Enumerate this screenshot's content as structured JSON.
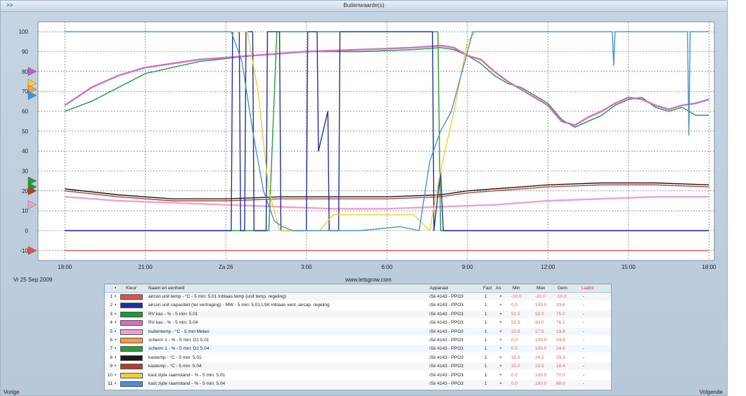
{
  "window": {
    "collapse_label": ">>",
    "title": "Buitenwaarde(s)"
  },
  "footer": {
    "date_label": "Vr 25 Sep 2009",
    "source_label": "www.letsgrow.com",
    "prev_label": "Vorige",
    "next_label": "Volgende"
  },
  "chart_data": {
    "type": "line",
    "x_tick_labels": [
      "18:00",
      "21:00",
      "Za 26",
      "3:00",
      "6:00",
      "9:00",
      "12:00",
      "15:00",
      "18:00"
    ],
    "x_range_hours": [
      -1,
      24.2
    ],
    "y_ticks": [
      -10,
      0,
      10,
      20,
      30,
      40,
      50,
      60,
      70,
      80,
      90,
      100
    ],
    "ylim": [
      -15,
      105
    ],
    "grid": true,
    "series": [
      {
        "name": "aircon unit temp - °C - 5 min: 5.01 Inblaas temp (unit temp. regeling)",
        "color": "#e05050",
        "x": [
          0,
          24
        ],
        "y": [
          -10,
          -10
        ]
      },
      {
        "name": "RV kas - % - 5 min: 5.01",
        "color": "#1a9a3a",
        "x": [
          0,
          1,
          2,
          3,
          5,
          7,
          9,
          11,
          13,
          14,
          14.5,
          15,
          15.5,
          16,
          16.5,
          17,
          17.5,
          18,
          18.5,
          19,
          19.5,
          20,
          20.5,
          21,
          21.5,
          22,
          22.5,
          23,
          23.5,
          24
        ],
        "y": [
          60,
          65,
          72,
          79,
          85,
          88,
          90,
          90,
          91,
          92,
          91,
          88,
          84,
          78,
          74,
          72,
          68,
          64,
          56,
          52,
          55,
          58,
          63,
          66,
          67,
          62,
          60,
          62,
          58,
          58
        ]
      },
      {
        "name": "RV kas - % - 5 min: 5.04",
        "color": "#d070c0",
        "x": [
          0,
          1,
          2,
          3,
          5,
          7,
          9,
          11,
          13,
          14,
          14.5,
          15,
          15.5,
          16,
          16.5,
          17,
          17.5,
          18,
          18.5,
          19,
          19.5,
          20,
          20.5,
          21,
          21.5,
          22,
          22.5,
          23,
          23.5,
          24
        ],
        "y": [
          63,
          72,
          78,
          82,
          86,
          88,
          90,
          91,
          92,
          93,
          92,
          88,
          86,
          80,
          75,
          71,
          67,
          63,
          55,
          53,
          57,
          60,
          64,
          67,
          66,
          63,
          61,
          63,
          64,
          66
        ]
      },
      {
        "name": "buitentemp - °C - 5 min Meteo",
        "color": "#f0a0d0",
        "x": [
          0,
          2,
          4,
          6,
          8,
          10,
          12,
          14,
          16,
          18,
          20,
          22,
          24
        ],
        "y": [
          17,
          15,
          14,
          13,
          12,
          11,
          11,
          12,
          13,
          15,
          16,
          17,
          17
        ]
      },
      {
        "name": "scherm 1 - % - 5 min: D1 5.01",
        "color": "#2a9a3a",
        "x": [
          0,
          7.6,
          7.9,
          8.0,
          13.5,
          13.9,
          14.0,
          24
        ],
        "y": [
          0,
          0,
          100,
          100,
          100,
          100,
          0,
          0
        ]
      },
      {
        "name": "kastemp - °C - 5 min: 5.01",
        "color": "#1a1a1a",
        "x": [
          0,
          2,
          4,
          6,
          8,
          10,
          12,
          14,
          15,
          16,
          18,
          20,
          22,
          24
        ],
        "y": [
          21,
          18,
          16,
          16,
          17,
          17,
          17,
          18,
          20,
          21,
          23,
          24,
          24,
          23
        ]
      },
      {
        "name": "kastemp - °C - 5 min: 5.04",
        "color": "#b04030",
        "x": [
          0,
          2,
          4,
          6,
          8,
          10,
          12,
          14,
          15,
          16,
          18,
          20,
          22,
          24
        ],
        "y": [
          20,
          17,
          15,
          15,
          16,
          16,
          16,
          17,
          19,
          20,
          22,
          23,
          23,
          22
        ]
      },
      {
        "name": "aircon unit capaciteit (ter vertraging) - MW - 5 min: 5.01 LSK inblaas vent. aircap. regeling",
        "color": "#2030a0",
        "x": [
          0,
          6.2,
          6.25,
          6.5,
          6.55,
          6.7,
          6.75,
          7.0,
          7.05,
          7.5,
          7.55,
          8.0,
          8.05,
          9.0,
          9.05,
          9.4,
          9.45,
          9.8,
          9.85,
          10.2,
          10.25,
          13.7,
          13.75,
          14.0,
          14.1,
          24
        ],
        "y": [
          0,
          0,
          100,
          100,
          0,
          0,
          100,
          100,
          0,
          0,
          100,
          100,
          0,
          0,
          100,
          100,
          40,
          60,
          0,
          0,
          100,
          100,
          0,
          30,
          0,
          0
        ]
      },
      {
        "name": "kast zijde raamstand - % - 5 min: 5.01",
        "color": "#f0d030",
        "x": [
          0,
          6.4,
          6.8,
          7.2,
          7.6,
          8.0,
          9.5,
          10.0,
          13.0,
          13.6,
          14.0,
          14.5,
          15.0,
          15.3,
          24
        ],
        "y": [
          100,
          100,
          100,
          70,
          20,
          0,
          0,
          8,
          8,
          0,
          30,
          60,
          95,
          100,
          100
        ]
      },
      {
        "name": "kast zijde raamstand - % - 5 min: 5.04",
        "color": "#4a90d0",
        "x": [
          0,
          6.2,
          6.6,
          7.0,
          7.4,
          7.8,
          8.1,
          8.5,
          9.0,
          11.0,
          12.5,
          13.2,
          13.6,
          14.0,
          14.4,
          14.8,
          15.2,
          20.4,
          20.45,
          20.5,
          23.2,
          23.25,
          23.3,
          24
        ],
        "y": [
          100,
          100,
          85,
          50,
          20,
          5,
          2,
          0,
          0,
          0,
          2,
          0,
          35,
          50,
          60,
          80,
          100,
          100,
          83,
          100,
          100,
          48,
          100,
          100
        ]
      }
    ],
    "axis_markers": [
      {
        "y": 80,
        "color": "#c060c0"
      },
      {
        "y": 74,
        "color": "#f0d030"
      },
      {
        "y": 71,
        "color": "#f0a040"
      },
      {
        "y": 68,
        "color": "#4a90d0"
      },
      {
        "y": 25,
        "color": "#2a9a3a"
      },
      {
        "y": 22,
        "color": "#1a9a3a"
      },
      {
        "y": 20,
        "color": "#b04030"
      },
      {
        "y": 13,
        "color": "#f0a0d0"
      },
      {
        "y": -10,
        "color": "#e05050"
      }
    ]
  },
  "legend": {
    "headers": {
      "dot": "•",
      "color": "Kleur",
      "name": "Naam en eenheid",
      "device": "Apparaat",
      "fact": "Fact",
      "ax": "As",
      "min": "Min",
      "max": "Max",
      "avg": "Gem",
      "last": "Laatst"
    },
    "rows": [
      {
        "idx": "1",
        "dot": "•",
        "color": "#e05050",
        "name": "aircon unit temp - °C - 5 min: 5.01 Inblaas temp (unit temp. regeling)",
        "device": "iSii 4143 - PPO3",
        "fact": "1",
        "ax": "+",
        "min": "-10.0",
        "max": "-10.0",
        "avg": "-10.0",
        "last": "-"
      },
      {
        "idx": "2",
        "dot": "•",
        "color": "#2030a0",
        "name": "aircon unit capaciteit (ter vertraging) - MW - 5 min: 5.01 LSK inblaas vent. aircap. regeling",
        "device": "iSii 4143 - PPO3",
        "fact": "1",
        "ax": "+",
        "min": "0.0",
        "max": "100.0",
        "avg": "33.6",
        "last": "-"
      },
      {
        "idx": "3",
        "dot": "•",
        "color": "#1a9a3a",
        "name": "RV kas - % - 5 min: 5.01",
        "device": "iSii 4143 - PPO3",
        "fact": "1",
        "ax": "+",
        "min": "51.5",
        "max": "92.0",
        "avg": "75.2",
        "last": "-"
      },
      {
        "idx": "4",
        "dot": "•",
        "color": "#d070c0",
        "name": "RV kas - % - 5 min: 5.04",
        "device": "iSii 4143 - PPO3",
        "fact": "1",
        "ax": "+",
        "min": "52.5",
        "max": "93.0",
        "avg": "76.1",
        "last": "-"
      },
      {
        "idx": "5",
        "dot": "•",
        "color": "#f0a0d0",
        "name": "buitentemp - °C - 5 min Meteo",
        "device": "iSii 4143 - PPO3",
        "fact": "1",
        "ax": "+",
        "min": "10.6",
        "max": "17.5",
        "avg": "13.9",
        "last": "-"
      },
      {
        "idx": "6",
        "dot": "•",
        "color": "#f0a040",
        "name": "scherm 1 - % - 5 min: D1 5.01",
        "device": "iSii 4143 - PPO3",
        "fact": "1",
        "ax": "+",
        "min": "0.0",
        "max": "100.0",
        "avg": "24.8",
        "last": "-"
      },
      {
        "idx": "7",
        "dot": "•",
        "color": "#2a9a3a",
        "name": "scherm 1 - % - 5 min: D1 5.04",
        "device": "iSii 4143 - PPO3",
        "fact": "1",
        "ax": "+",
        "min": "0.0",
        "max": "100.0",
        "avg": "24.8",
        "last": "-"
      },
      {
        "idx": "8",
        "dot": "•",
        "color": "#1a1a1a",
        "name": "kastemp - °C - 5 min: 5.01",
        "device": "iSii 4143 - PPO3",
        "fact": "1",
        "ax": "+",
        "min": "15.5",
        "max": "24.5",
        "avg": "19.3",
        "last": "-"
      },
      {
        "idx": "9",
        "dot": "•",
        "color": "#b04030",
        "name": "kastemp - °C - 5 min: 5.04",
        "device": "iSii 4143 - PPO3",
        "fact": "1",
        "ax": "+",
        "min": "15.0",
        "max": "23.5",
        "avg": "18.4",
        "last": "-"
      },
      {
        "idx": "10",
        "dot": "•",
        "color": "#f0d030",
        "name": "kast zijde raamstand - % - 5 min: 5.01",
        "device": "iSii 4143 - PPO3",
        "fact": "1",
        "ax": "+",
        "min": "0.0",
        "max": "100.0",
        "avg": "72.0",
        "last": "-"
      },
      {
        "idx": "11",
        "dot": "•",
        "color": "#4a90d0",
        "name": "kast zijde raamstand - % - 5 min: 5.04",
        "device": "iSii 4143 - PPO3",
        "fact": "1",
        "ax": "+",
        "min": "0.0",
        "max": "100.0",
        "avg": "68.0",
        "last": "-"
      }
    ]
  }
}
